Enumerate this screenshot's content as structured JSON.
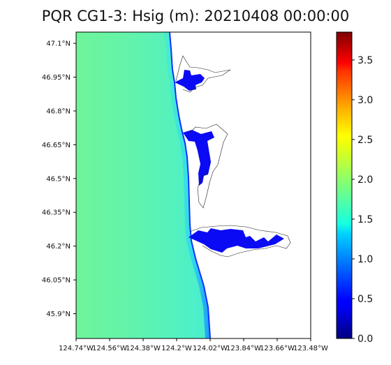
{
  "title": "PQR CG1-3: Hsig (m): 20210408 00:00:00",
  "chart_data": {
    "type": "heatmap",
    "title": "PQR CG1-3: Hsig (m): 20210408 00:00:00",
    "variable": "Hsig (m)",
    "colormap": "jet",
    "colorbar": {
      "vmin": 0.0,
      "vmax": 3.85,
      "ticks": [
        0.0,
        0.5,
        1.0,
        1.5,
        2.0,
        2.5,
        3.0,
        3.5
      ],
      "tick_labels": [
        "0.0",
        "0.5",
        "1.0",
        "1.5",
        "2.0",
        "2.5",
        "3.0",
        "3.5"
      ]
    },
    "lat_ticks": [
      47.1,
      46.95,
      46.8,
      46.65,
      46.5,
      46.35,
      46.2,
      46.05,
      45.9
    ],
    "lat_labels": [
      "47.1°N",
      "46.95°N",
      "46.8°N",
      "46.65°N",
      "46.5°N",
      "46.35°N",
      "46.2°N",
      "46.05°N",
      "45.9°N"
    ],
    "lon_ticks": [
      -124.74,
      -124.56,
      -124.38,
      -124.2,
      -124.02,
      -123.84,
      -123.66,
      -123.48
    ],
    "lon_labels": [
      "124.74°W",
      "124.56°W",
      "124.38°W",
      "124.2°W",
      "124.02°W",
      "123.84°W",
      "123.66°W",
      "123.48°W"
    ],
    "extent": {
      "lon": [
        -124.74,
        -123.48
      ],
      "lat": [
        45.79,
        47.15
      ]
    },
    "field_description": {
      "offshore_hsig": 1.75,
      "nearshore_hsig": 1.5,
      "estuary_hsig": 0.2,
      "land": "white (no data)"
    }
  }
}
